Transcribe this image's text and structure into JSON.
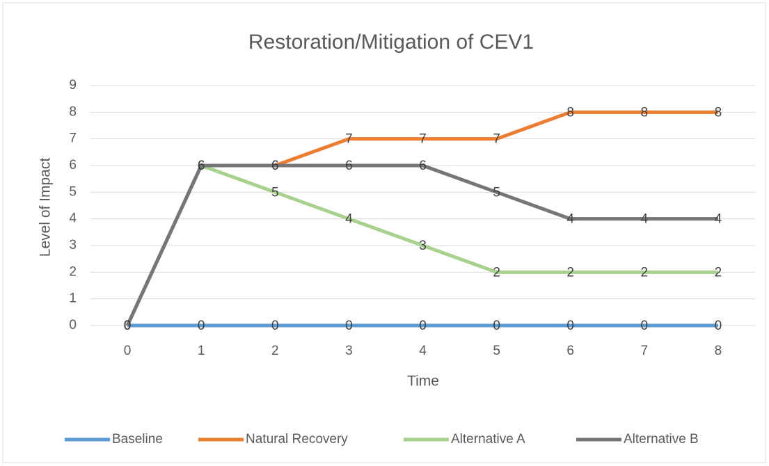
{
  "chart_data": {
    "type": "line",
    "title": "Restoration/Mitigation of CEV1",
    "x_label": "Time",
    "y_label": "Level of Impact",
    "categories": [
      "0",
      "1",
      "2",
      "3",
      "4",
      "5",
      "6",
      "7",
      "8"
    ],
    "series": [
      {
        "name": "Baseline",
        "color": "#5b9bd5",
        "values": [
          0,
          0,
          0,
          0,
          0,
          0,
          0,
          0,
          0
        ]
      },
      {
        "name": "Natural Recovery",
        "color": "#ed7d31",
        "values": [
          0,
          6,
          6,
          7,
          7,
          7,
          8,
          8,
          8
        ]
      },
      {
        "name": "Alternative A",
        "color": "#a9d18e",
        "values": [
          0,
          6,
          5,
          4,
          3,
          2,
          2,
          2,
          2
        ]
      },
      {
        "name": "Alternative B",
        "color": "#767676",
        "values": [
          0,
          6,
          6,
          6,
          6,
          5,
          4,
          4,
          4
        ]
      }
    ],
    "ylim": [
      0,
      9
    ],
    "yticks": [
      0,
      1,
      2,
      3,
      4,
      5,
      6,
      7,
      8,
      9
    ],
    "grid": true,
    "legend": "bottom"
  }
}
